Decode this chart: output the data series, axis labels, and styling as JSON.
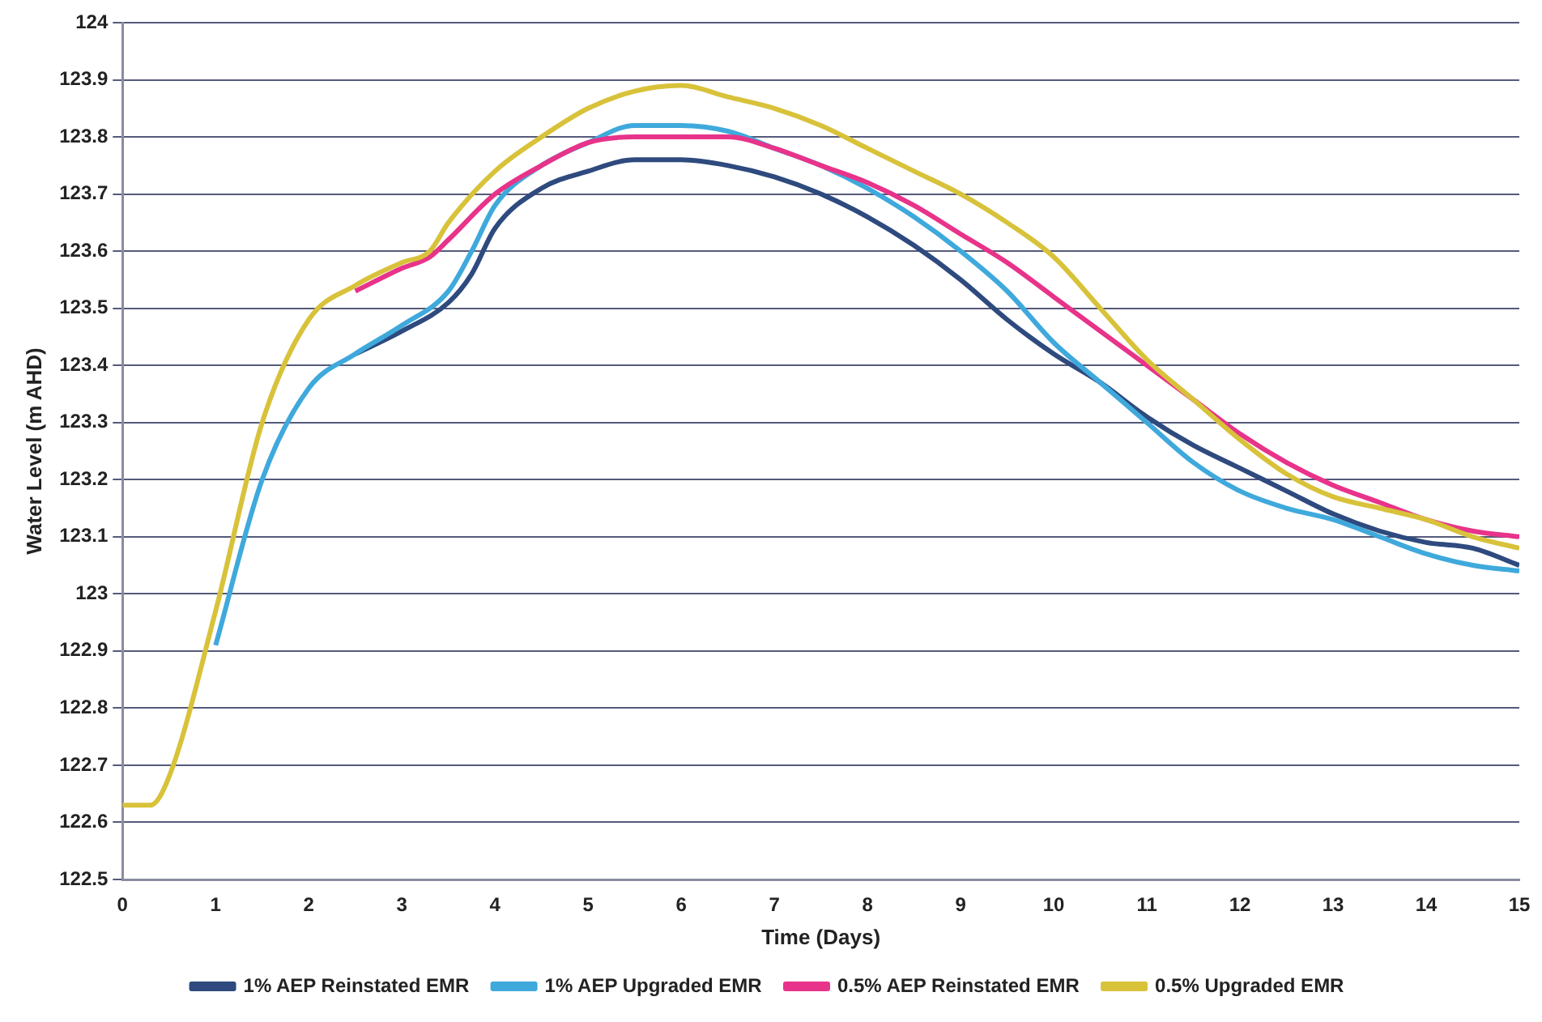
{
  "chart_data": {
    "type": "line",
    "xlabel": "Time (Days)",
    "ylabel": "Water Level (m AHD)",
    "xlim": [
      0,
      15
    ],
    "xticks": [
      0,
      1,
      2,
      3,
      4,
      5,
      6,
      7,
      8,
      9,
      10,
      11,
      12,
      13,
      14,
      15
    ],
    "ylim": [
      122.5,
      124
    ],
    "yticks": [
      122.5,
      122.6,
      122.7,
      122.8,
      122.9,
      123,
      123.1,
      123.2,
      123.3,
      123.4,
      123.5,
      123.6,
      123.7,
      123.8,
      123.9,
      124
    ],
    "grid": "y",
    "legend": "bottom",
    "marker": "none",
    "line_style": "solid",
    "series": [
      {
        "name": "1% AEP Reinstated EMR",
        "color": "#2e4a7e",
        "x": [
          2.5,
          3,
          3.5,
          3.75,
          4,
          4.5,
          5,
          5.5,
          6,
          6.5,
          7,
          7.5,
          8,
          8.5,
          9,
          9.5,
          10,
          10.5,
          11,
          11.5,
          12,
          12.5,
          13,
          13.5,
          14,
          14.5,
          15
        ],
        "values": [
          123.42,
          123.46,
          123.51,
          123.56,
          123.64,
          123.71,
          123.74,
          123.76,
          123.76,
          123.75,
          123.73,
          123.7,
          123.66,
          123.61,
          123.55,
          123.48,
          123.42,
          123.37,
          123.31,
          123.26,
          123.22,
          123.18,
          123.14,
          123.11,
          123.09,
          123.08,
          123.05
        ]
      },
      {
        "name": "1% AEP Upgraded EMR",
        "color": "#3fa9dc",
        "x": [
          1,
          1.5,
          2,
          2.5,
          3,
          3.5,
          3.75,
          4,
          4.5,
          5,
          5.5,
          6,
          6.5,
          7,
          7.5,
          8,
          8.5,
          9,
          9.5,
          10,
          10.5,
          11,
          11.5,
          12,
          12.5,
          13,
          13.5,
          14,
          14.5,
          15
        ],
        "values": [
          122.91,
          123.2,
          123.36,
          123.42,
          123.47,
          123.53,
          123.6,
          123.68,
          123.75,
          123.79,
          123.82,
          123.82,
          123.81,
          123.78,
          123.75,
          123.71,
          123.66,
          123.6,
          123.53,
          123.44,
          123.37,
          123.3,
          123.23,
          123.18,
          123.15,
          123.13,
          123.1,
          123.07,
          123.05,
          123.04
        ]
      },
      {
        "name": "0.5% AEP Reinstated EMR",
        "color": "#e8338a",
        "x": [
          2.5,
          3,
          3.3,
          3.5,
          4,
          4.5,
          5,
          5.5,
          6,
          6.5,
          7,
          7.5,
          8,
          8.5,
          9,
          9.5,
          10,
          10.5,
          11,
          11.5,
          12,
          12.5,
          13,
          13.5,
          14,
          14.5,
          15
        ],
        "values": [
          123.53,
          123.57,
          123.59,
          123.62,
          123.7,
          123.75,
          123.79,
          123.8,
          123.8,
          123.8,
          123.78,
          123.75,
          123.72,
          123.68,
          123.63,
          123.58,
          123.52,
          123.46,
          123.4,
          123.34,
          123.28,
          123.23,
          123.19,
          123.16,
          123.13,
          123.11,
          123.1
        ]
      },
      {
        "name": "0.5% Upgraded EMR",
        "color": "#d8c23a",
        "x": [
          0,
          0.3,
          0.5,
          1,
          1.5,
          2,
          2.5,
          3,
          3.3,
          3.5,
          4,
          4.5,
          5,
          5.5,
          6,
          6.5,
          7,
          7.5,
          8,
          8.5,
          9,
          9.5,
          10,
          10.5,
          11,
          11.5,
          12,
          12.5,
          13,
          13.5,
          14,
          14.5,
          15
        ],
        "values": [
          122.63,
          122.63,
          122.68,
          122.97,
          123.3,
          123.48,
          123.54,
          123.58,
          123.6,
          123.65,
          123.74,
          123.8,
          123.85,
          123.88,
          123.89,
          123.87,
          123.85,
          123.82,
          123.78,
          123.74,
          123.7,
          123.65,
          123.59,
          123.5,
          123.41,
          123.34,
          123.27,
          123.21,
          123.17,
          123.15,
          123.13,
          123.1,
          123.08
        ]
      }
    ]
  }
}
